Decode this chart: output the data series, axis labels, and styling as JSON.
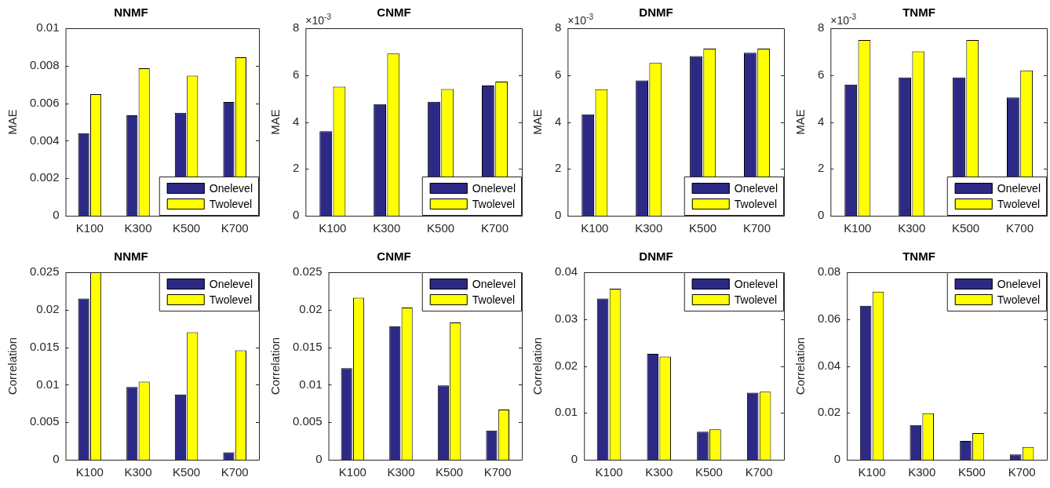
{
  "chart_data": [
    {
      "type": "bar",
      "title": "NNMF",
      "ylabel": "MAE",
      "categories": [
        "K100",
        "K300",
        "K500",
        "K700"
      ],
      "ylim": [
        0,
        0.01
      ],
      "yticks": [
        0,
        0.002,
        0.004,
        0.006,
        0.008,
        0.01
      ],
      "legend": "bottom right",
      "series": [
        {
          "name": "Onelevel",
          "color": "#2d2a86",
          "values": [
            0.0044,
            0.00536,
            0.00549,
            0.00607
          ]
        },
        {
          "name": "Twolevel",
          "color": "#ffff00",
          "values": [
            0.00649,
            0.00787,
            0.00747,
            0.00845
          ]
        }
      ]
    },
    {
      "type": "bar",
      "title": "CNMF",
      "ylabel": "MAE",
      "annotations": [
        "×10$^{-3}$"
      ],
      "categories": [
        "K100",
        "K300",
        "K500",
        "K700"
      ],
      "ylim": [
        0,
        8
      ],
      "yticks": [
        0,
        2,
        4,
        6,
        8
      ],
      "legend": "bottom right",
      "series": [
        {
          "name": "Onelevel",
          "color": "#2d2a86",
          "values": [
            3.61,
            4.76,
            4.86,
            5.56
          ]
        },
        {
          "name": "Twolevel",
          "color": "#ffff00",
          "values": [
            5.51,
            6.92,
            5.41,
            5.72
          ]
        }
      ]
    },
    {
      "type": "bar",
      "title": "DNMF",
      "ylabel": "MAE",
      "annotations": [
        "×10$^{-3}$"
      ],
      "categories": [
        "K100",
        "K300",
        "K500",
        "K700"
      ],
      "ylim": [
        0,
        8
      ],
      "yticks": [
        0,
        2,
        4,
        6,
        8
      ],
      "legend": "bottom right",
      "series": [
        {
          "name": "Onelevel",
          "color": "#2d2a86",
          "values": [
            4.33,
            5.77,
            6.81,
            6.95
          ]
        },
        {
          "name": "Twolevel",
          "color": "#ffff00",
          "values": [
            5.4,
            6.52,
            7.13,
            7.13
          ]
        }
      ]
    },
    {
      "type": "bar",
      "title": "TNMF",
      "ylabel": "MAE",
      "annotations": [
        "×10$^{-3}$"
      ],
      "categories": [
        "K100",
        "K300",
        "K500",
        "K700"
      ],
      "ylim": [
        0,
        8
      ],
      "yticks": [
        0,
        2,
        4,
        6,
        8
      ],
      "legend": "bottom right",
      "series": [
        {
          "name": "Onelevel",
          "color": "#2d2a86",
          "values": [
            5.6,
            5.9,
            5.9,
            5.05
          ]
        },
        {
          "name": "Twolevel",
          "color": "#ffff00",
          "values": [
            7.5,
            7.01,
            7.5,
            6.2
          ]
        }
      ]
    },
    {
      "type": "bar",
      "title": "NNMF",
      "ylabel": "Correlation",
      "categories": [
        "K100",
        "K300",
        "K500",
        "K700"
      ],
      "ylim": [
        0,
        0.025
      ],
      "yticks": [
        0,
        0.005,
        0.01,
        0.015,
        0.02,
        0.025
      ],
      "legend": "top right",
      "series": [
        {
          "name": "Onelevel",
          "color": "#2d2a86",
          "values": [
            0.0215,
            0.0097,
            0.0087,
            0.001
          ]
        },
        {
          "name": "Twolevel",
          "color": "#ffff00",
          "values": [
            0.025,
            0.0104,
            0.017,
            0.0146
          ]
        }
      ]
    },
    {
      "type": "bar",
      "title": "CNMF",
      "ylabel": "Correlation",
      "categories": [
        "K100",
        "K300",
        "K500",
        "K700"
      ],
      "ylim": [
        0,
        0.025
      ],
      "yticks": [
        0,
        0.005,
        0.01,
        0.015,
        0.02,
        0.025
      ],
      "legend": "top right",
      "series": [
        {
          "name": "Onelevel",
          "color": "#2d2a86",
          "values": [
            0.0122,
            0.0178,
            0.0099,
            0.0039
          ]
        },
        {
          "name": "Twolevel",
          "color": "#ffff00",
          "values": [
            0.0216,
            0.0203,
            0.0183,
            0.0067
          ]
        }
      ]
    },
    {
      "type": "bar",
      "title": "DNMF",
      "ylabel": "Correlation",
      "categories": [
        "K100",
        "K300",
        "K500",
        "K700"
      ],
      "ylim": [
        0,
        0.04
      ],
      "yticks": [
        0,
        0.01,
        0.02,
        0.03,
        0.04
      ],
      "legend": "top right",
      "series": [
        {
          "name": "Onelevel",
          "color": "#2d2a86",
          "values": [
            0.0344,
            0.0226,
            0.006,
            0.0143
          ]
        },
        {
          "name": "Twolevel",
          "color": "#ffff00",
          "values": [
            0.0365,
            0.022,
            0.0065,
            0.0145
          ]
        }
      ]
    },
    {
      "type": "bar",
      "title": "TNMF",
      "ylabel": "Correlation",
      "categories": [
        "K100",
        "K300",
        "K500",
        "K700"
      ],
      "ylim": [
        0,
        0.08
      ],
      "yticks": [
        0,
        0.02,
        0.04,
        0.06,
        0.08
      ],
      "legend": "top right",
      "series": [
        {
          "name": "Onelevel",
          "color": "#2d2a86",
          "values": [
            0.0657,
            0.0148,
            0.008,
            0.0023
          ]
        },
        {
          "name": "Twolevel",
          "color": "#ffff00",
          "values": [
            0.0717,
            0.0198,
            0.0114,
            0.0054
          ]
        }
      ]
    }
  ]
}
